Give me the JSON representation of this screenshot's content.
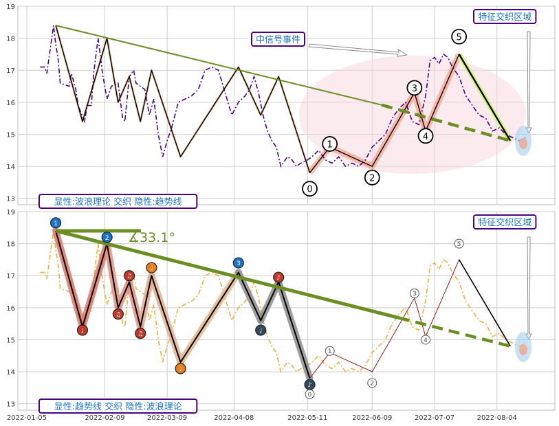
{
  "colors": {
    "price_top": "#4b0082",
    "price_bottom": "#f0b040",
    "trend": "#6b8e23",
    "wave": "#000000",
    "wave_glow": "#f08070",
    "grid": "#cccccc",
    "ellipse": "#f7d8e0",
    "box_border": "#4b0082",
    "box_text": "#1a73c8",
    "highlight": "#d4f58a"
  },
  "chart_data": [
    {
      "type": "line",
      "panel": "top",
      "ylim": [
        12.8,
        19.0
      ],
      "yticks": [
        "13",
        "14",
        "15",
        "16",
        "17",
        "18",
        "19"
      ],
      "price_series": {
        "x": [
          "2022-01-11",
          "2022-01-13",
          "2022-01-14",
          "2022-01-17",
          "2022-01-18",
          "2022-01-19",
          "2022-01-20",
          "2022-01-24",
          "2022-01-25",
          "2022-01-27",
          "2022-01-28",
          "2022-01-31",
          "2022-02-01",
          "2022-02-03",
          "2022-02-04",
          "2022-02-06",
          "2022-02-08",
          "2022-02-10",
          "2022-02-12",
          "2022-02-15",
          "2022-02-17",
          "2022-02-18",
          "2022-02-20",
          "2022-02-22",
          "2022-02-23",
          "2022-02-25",
          "2022-02-27",
          "2022-03-01",
          "2022-03-03",
          "2022-03-05",
          "2022-03-07",
          "2022-03-09",
          "2022-03-11",
          "2022-03-14",
          "2022-03-17",
          "2022-03-20",
          "2022-03-23",
          "2022-03-26",
          "2022-03-29",
          "2022-04-01",
          "2022-04-04",
          "2022-04-07",
          "2022-04-10",
          "2022-04-13",
          "2022-04-15",
          "2022-04-17",
          "2022-04-19",
          "2022-04-21",
          "2022-04-23",
          "2022-04-25",
          "2022-04-27",
          "2022-04-29",
          "2022-05-02",
          "2022-05-04",
          "2022-05-06",
          "2022-05-08",
          "2022-05-11",
          "2022-05-13",
          "2022-05-16",
          "2022-05-19",
          "2022-05-22",
          "2022-05-25",
          "2022-05-28",
          "2022-05-31",
          "2022-06-03",
          "2022-06-06",
          "2022-06-09",
          "2022-06-12",
          "2022-06-15",
          "2022-06-18",
          "2022-06-21",
          "2022-06-24",
          "2022-06-27",
          "2022-06-30",
          "2022-07-03",
          "2022-07-05",
          "2022-07-07",
          "2022-07-09",
          "2022-07-11",
          "2022-07-13",
          "2022-07-15",
          "2022-07-18",
          "2022-07-21",
          "2022-07-24",
          "2022-07-27",
          "2022-07-30",
          "2022-08-02",
          "2022-08-05",
          "2022-08-08",
          "2022-08-11",
          "2022-08-14",
          "2022-08-17"
        ],
        "y": [
          17.1,
          17.1,
          16.9,
          18.4,
          17.8,
          17.4,
          16.6,
          16.5,
          16.9,
          16.4,
          15.9,
          15.4,
          15.9,
          15.9,
          16.9,
          18.0,
          16.9,
          16.1,
          16.5,
          16.6,
          15.5,
          15.4,
          16.8,
          17.0,
          16.6,
          16.5,
          16.4,
          15.6,
          16.1,
          15.0,
          14.3,
          14.8,
          15.2,
          16.0,
          16.1,
          16.2,
          16.4,
          17.0,
          17.1,
          17.0,
          16.3,
          15.6,
          16.0,
          16.2,
          16.4,
          16.8,
          16.3,
          15.6,
          15.1,
          14.8,
          14.6,
          14.0,
          14.3,
          14.2,
          14.0,
          14.1,
          14.2,
          14.3,
          14.5,
          14.2,
          14.1,
          14.3,
          14.0,
          14.1,
          14.0,
          14.2,
          14.6,
          14.8,
          15.0,
          15.5,
          15.8,
          16.0,
          15.4,
          15.3,
          16.2,
          17.3,
          17.4,
          17.2,
          17.5,
          17.4,
          17.1,
          16.8,
          16.2,
          15.9,
          15.6,
          15.5,
          15.1,
          15.2,
          15.0,
          14.9,
          14.8,
          14.9
        ]
      },
      "wave_points": {
        "x": [
          "2022-01-18",
          "2022-01-30",
          "2022-02-10",
          "2022-02-15",
          "2022-02-20",
          "2022-02-25",
          "2022-03-02",
          "2022-03-15",
          "2022-04-10",
          "2022-04-20",
          "2022-04-28",
          "2022-05-12",
          "2022-05-21",
          "2022-06-09",
          "2022-06-28",
          "2022-07-03",
          "2022-07-18",
          "2022-08-10"
        ],
        "y": [
          18.4,
          15.4,
          18.0,
          16.0,
          16.8,
          15.4,
          17.0,
          14.3,
          17.1,
          15.6,
          16.8,
          13.8,
          14.6,
          14.0,
          16.3,
          15.1,
          17.5,
          14.8
        ]
      },
      "wave_labels": [
        {
          "label": "0",
          "x": "2022-05-12",
          "y": 13.3
        },
        {
          "label": "1",
          "x": "2022-05-21",
          "y": 14.7
        },
        {
          "label": "2",
          "x": "2022-06-09",
          "y": 13.65
        },
        {
          "label": "3",
          "x": "2022-06-28",
          "y": 16.45
        },
        {
          "label": "4",
          "x": "2022-07-03",
          "y": 14.95
        },
        {
          "label": "5",
          "x": "2022-07-18",
          "y": 18.05
        }
      ],
      "trendline": {
        "x": [
          "2022-01-18",
          "2022-07-08"
        ],
        "y": [
          18.4,
          15.7
        ],
        "dashed_to": {
          "x": "2022-08-10",
          "y": 14.8
        }
      },
      "event_label": "中信号事件",
      "zone_label": "特征交织区域",
      "legend_label": "显性:波浪理论 交织 隐性:趋势线"
    },
    {
      "type": "line",
      "panel": "bottom",
      "ylim": [
        12.8,
        19.0
      ],
      "yticks": [
        "13",
        "14",
        "15",
        "16",
        "17",
        "18",
        "19"
      ],
      "xticks": [
        "2022-01-05",
        "2022-02-09",
        "2022-03-09",
        "2022-04-08",
        "2022-05-11",
        "2022-06-09",
        "2022-07-07",
        "2022-08-04"
      ],
      "angle_label": "∡33.1°",
      "pivot_labels": [
        {
          "label": "1",
          "x": "2022-01-18",
          "y": 18.65,
          "color": "#1a73c8"
        },
        {
          "label": "♩",
          "x": "2022-01-30",
          "y": 15.3,
          "color": "#c0392b"
        },
        {
          "label": "2",
          "x": "2022-02-10",
          "y": 18.2,
          "color": "#1a73c8"
        },
        {
          "label": "♫",
          "x": "2022-02-15",
          "y": 15.8,
          "color": "#c0392b"
        },
        {
          "label": "♫",
          "x": "2022-02-20",
          "y": 17.0,
          "color": "#c0392b"
        },
        {
          "label": "♫",
          "x": "2022-02-25",
          "y": 15.2,
          "color": "#c0392b"
        },
        {
          "label": "♩",
          "x": "2022-03-02",
          "y": 17.25,
          "color": "#e67e22"
        },
        {
          "label": "♩",
          "x": "2022-03-15",
          "y": 14.1,
          "color": "#e67e22"
        },
        {
          "label": "3",
          "x": "2022-04-10",
          "y": 17.4,
          "color": "#1a73c8"
        },
        {
          "label": "♩",
          "x": "2022-04-20",
          "y": 15.3,
          "color": "#34495e"
        },
        {
          "label": "♪",
          "x": "2022-04-28",
          "y": 16.95,
          "color": "#c0392b"
        },
        {
          "label": "♪",
          "x": "2022-05-12",
          "y": 13.6,
          "color": "#34495e"
        }
      ],
      "small_wave_labels": [
        {
          "label": "0",
          "x": "2022-05-12",
          "y": 13.3
        },
        {
          "label": "1",
          "x": "2022-05-21",
          "y": 14.65
        },
        {
          "label": "2",
          "x": "2022-06-09",
          "y": 13.65
        },
        {
          "label": "3",
          "x": "2022-06-28",
          "y": 16.45
        },
        {
          "label": "4",
          "x": "2022-07-03",
          "y": 15.0
        },
        {
          "label": "5",
          "x": "2022-07-18",
          "y": 18.0
        }
      ],
      "zone_label": "特征交织区域",
      "legend_label": "显性:趋势线 交织 隐性:波浪理论"
    }
  ]
}
